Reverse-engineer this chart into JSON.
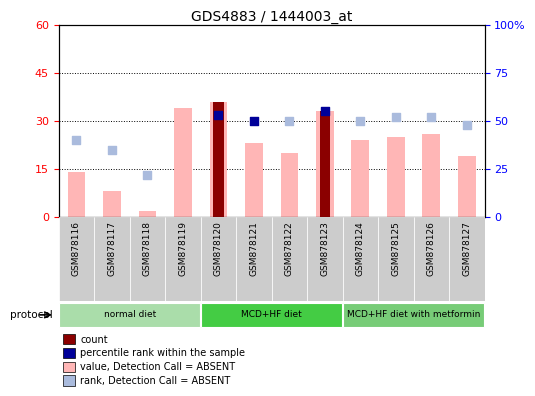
{
  "title": "GDS4883 / 1444003_at",
  "samples": [
    "GSM878116",
    "GSM878117",
    "GSM878118",
    "GSM878119",
    "GSM878120",
    "GSM878121",
    "GSM878122",
    "GSM878123",
    "GSM878124",
    "GSM878125",
    "GSM878126",
    "GSM878127"
  ],
  "count_values": [
    0,
    0,
    0,
    0,
    36,
    0,
    0,
    33,
    0,
    0,
    0,
    0
  ],
  "percentile_rank_values": [
    0,
    0,
    0,
    0,
    53,
    50,
    0,
    55,
    0,
    0,
    0,
    0
  ],
  "value_absent": [
    14,
    8,
    2,
    34,
    36,
    23,
    20,
    33,
    24,
    25,
    26,
    19
  ],
  "rank_absent": [
    40,
    35,
    22,
    0,
    0,
    0,
    50,
    0,
    50,
    52,
    52,
    48
  ],
  "ylim_left": [
    0,
    60
  ],
  "ylim_right": [
    0,
    100
  ],
  "yticks_left": [
    0,
    15,
    30,
    45,
    60
  ],
  "ytick_labels_left": [
    "0",
    "15",
    "30",
    "45",
    "60"
  ],
  "yticks_right": [
    0,
    25,
    50,
    75,
    100
  ],
  "ytick_labels_right": [
    "0",
    "25",
    "50",
    "75",
    "100%"
  ],
  "groups": [
    {
      "label": "normal diet",
      "start": 0,
      "end": 3,
      "color": "#aaddaa"
    },
    {
      "label": "MCD+HF diet",
      "start": 4,
      "end": 7,
      "color": "#44cc44"
    },
    {
      "label": "MCD+HF diet with metformin",
      "start": 8,
      "end": 11,
      "color": "#77cc77"
    }
  ],
  "color_count": "#8B0000",
  "color_percentile": "#000099",
  "color_value_absent": "#FFB6B6",
  "color_rank_absent": "#AABBDD",
  "pink_bar_width": 0.5,
  "dark_bar_width": 0.3,
  "dot_size": 35
}
